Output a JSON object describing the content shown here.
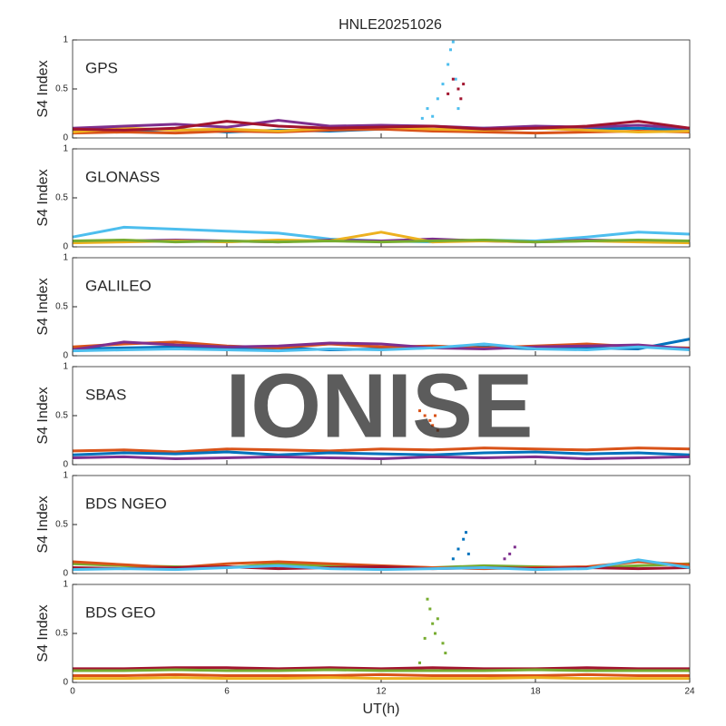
{
  "title": "HNLE20251026",
  "watermark": "IONISE",
  "chart_data": [
    {
      "type": "line",
      "label": "GPS",
      "ylabel": "S4 Index",
      "xlim": [
        0,
        24
      ],
      "ylim": [
        0,
        1
      ],
      "yticks": [
        0,
        0.5,
        1
      ],
      "xticks": [
        0,
        6,
        12,
        18,
        24
      ],
      "x": [
        0,
        2,
        4,
        6,
        8,
        10,
        12,
        14,
        16,
        18,
        20,
        22,
        24
      ],
      "series": [
        {
          "color": "#0072BD",
          "values": [
            0.08,
            0.07,
            0.09,
            0.06,
            0.08,
            0.07,
            0.09,
            0.08,
            0.1,
            0.11,
            0.09,
            0.1,
            0.08
          ]
        },
        {
          "color": "#D95319",
          "values": [
            0.05,
            0.06,
            0.05,
            0.07,
            0.06,
            0.08,
            0.09,
            0.07,
            0.06,
            0.05,
            0.06,
            0.07,
            0.06
          ]
        },
        {
          "color": "#EDB120",
          "values": [
            0.06,
            0.1,
            0.08,
            0.09,
            0.07,
            0.1,
            0.11,
            0.09,
            0.08,
            0.1,
            0.08,
            0.06,
            0.07
          ]
        },
        {
          "color": "#7E2F8E",
          "values": [
            0.1,
            0.12,
            0.14,
            0.11,
            0.18,
            0.12,
            0.13,
            0.12,
            0.1,
            0.12,
            0.11,
            0.13,
            0.1
          ]
        },
        {
          "color": "#A2142F",
          "values": [
            0.09,
            0.08,
            0.1,
            0.17,
            0.12,
            0.1,
            0.11,
            0.12,
            0.09,
            0.1,
            0.12,
            0.17,
            0.1
          ]
        },
        {
          "color": "#4DBEEE",
          "marker": true,
          "x": [
            13.6,
            13.8,
            14,
            14.2,
            14.4,
            14.6,
            14.7,
            14.8,
            14.9,
            15.0
          ],
          "values": [
            0.2,
            0.3,
            0.22,
            0.4,
            0.55,
            0.75,
            0.9,
            0.98,
            0.6,
            0.3
          ]
        },
        {
          "color": "#A2142F",
          "marker": true,
          "x": [
            14.6,
            14.8,
            15.0,
            15.1,
            15.2
          ],
          "values": [
            0.45,
            0.6,
            0.5,
            0.4,
            0.55
          ]
        }
      ]
    },
    {
      "type": "line",
      "label": "GLONASS",
      "ylabel": "S4 Index",
      "xlim": [
        0,
        24
      ],
      "ylim": [
        0,
        1
      ],
      "yticks": [
        0,
        0.5,
        1
      ],
      "xticks": [
        0,
        6,
        12,
        18,
        24
      ],
      "x": [
        0,
        2,
        4,
        6,
        8,
        10,
        12,
        14,
        16,
        18,
        20,
        22,
        24
      ],
      "series": [
        {
          "color": "#4DBEEE",
          "values": [
            0.1,
            0.2,
            0.18,
            0.16,
            0.14,
            0.08,
            0.06,
            0.05,
            0.07,
            0.06,
            0.1,
            0.15,
            0.13
          ]
        },
        {
          "color": "#7E2F8E",
          "values": [
            0.05,
            0.06,
            0.07,
            0.06,
            0.05,
            0.07,
            0.06,
            0.08,
            0.06,
            0.05,
            0.07,
            0.06,
            0.05
          ]
        },
        {
          "color": "#EDB120",
          "values": [
            0.04,
            0.05,
            0.06,
            0.05,
            0.07,
            0.06,
            0.15,
            0.05,
            0.06,
            0.05,
            0.06,
            0.05,
            0.04
          ]
        },
        {
          "color": "#77AC30",
          "values": [
            0.06,
            0.07,
            0.05,
            0.06,
            0.05,
            0.06,
            0.05,
            0.06,
            0.07,
            0.05,
            0.06,
            0.07,
            0.06
          ]
        }
      ]
    },
    {
      "type": "line",
      "label": "GALILEO",
      "ylabel": "S4 Index",
      "xlim": [
        0,
        24
      ],
      "ylim": [
        0,
        1
      ],
      "yticks": [
        0,
        0.5,
        1
      ],
      "xticks": [
        0,
        6,
        12,
        18,
        24
      ],
      "x": [
        0,
        2,
        4,
        6,
        8,
        10,
        12,
        14,
        16,
        18,
        20,
        22,
        24
      ],
      "series": [
        {
          "color": "#0072BD",
          "values": [
            0.07,
            0.08,
            0.09,
            0.07,
            0.08,
            0.06,
            0.07,
            0.08,
            0.09,
            0.07,
            0.08,
            0.07,
            0.17
          ]
        },
        {
          "color": "#D95319",
          "values": [
            0.09,
            0.12,
            0.14,
            0.1,
            0.08,
            0.12,
            0.09,
            0.1,
            0.08,
            0.1,
            0.12,
            0.09,
            0.08
          ]
        },
        {
          "color": "#7E2F8E",
          "values": [
            0.06,
            0.14,
            0.11,
            0.09,
            0.1,
            0.13,
            0.12,
            0.08,
            0.07,
            0.09,
            0.1,
            0.11,
            0.07
          ]
        },
        {
          "color": "#4DBEEE",
          "values": [
            0.05,
            0.06,
            0.07,
            0.06,
            0.05,
            0.07,
            0.06,
            0.08,
            0.12,
            0.07,
            0.06,
            0.09,
            0.06
          ]
        }
      ]
    },
    {
      "type": "line",
      "label": "SBAS",
      "ylabel": "S4 Index",
      "xlim": [
        0,
        24
      ],
      "ylim": [
        0,
        1
      ],
      "yticks": [
        0,
        0.5,
        1
      ],
      "xticks": [
        0,
        6,
        12,
        18,
        24
      ],
      "x": [
        0,
        2,
        4,
        6,
        8,
        10,
        12,
        14,
        16,
        18,
        20,
        22,
        24
      ],
      "series": [
        {
          "color": "#D95319",
          "values": [
            0.14,
            0.15,
            0.13,
            0.16,
            0.15,
            0.14,
            0.16,
            0.15,
            0.17,
            0.16,
            0.15,
            0.17,
            0.16
          ]
        },
        {
          "color": "#0072BD",
          "values": [
            0.1,
            0.12,
            0.11,
            0.13,
            0.1,
            0.12,
            0.11,
            0.1,
            0.12,
            0.13,
            0.11,
            0.12,
            0.1
          ]
        },
        {
          "color": "#7E2F8E",
          "values": [
            0.07,
            0.08,
            0.06,
            0.07,
            0.08,
            0.07,
            0.06,
            0.08,
            0.07,
            0.08,
            0.06,
            0.07,
            0.08
          ]
        },
        {
          "color": "#D95319",
          "marker": true,
          "x": [
            13.5,
            13.7,
            13.9,
            14.0,
            14.1,
            14.2
          ],
          "values": [
            0.55,
            0.5,
            0.45,
            0.4,
            0.5,
            0.35
          ]
        }
      ]
    },
    {
      "type": "line",
      "label": "BDS NGEO",
      "ylabel": "S4 Index",
      "xlim": [
        0,
        24
      ],
      "ylim": [
        0,
        1
      ],
      "yticks": [
        0,
        0.5,
        1
      ],
      "xticks": [
        0,
        6,
        12,
        18,
        24
      ],
      "x": [
        0,
        2,
        4,
        6,
        8,
        10,
        12,
        14,
        16,
        18,
        20,
        22,
        24
      ],
      "series": [
        {
          "color": "#77AC30",
          "values": [
            0.1,
            0.08,
            0.07,
            0.06,
            0.1,
            0.08,
            0.07,
            0.06,
            0.08,
            0.07,
            0.06,
            0.08,
            0.1
          ]
        },
        {
          "color": "#D95319",
          "values": [
            0.12,
            0.09,
            0.06,
            0.1,
            0.12,
            0.1,
            0.08,
            0.06,
            0.05,
            0.06,
            0.07,
            0.12,
            0.09
          ]
        },
        {
          "color": "#A2142F",
          "values": [
            0.06,
            0.05,
            0.06,
            0.07,
            0.05,
            0.06,
            0.07,
            0.05,
            0.06,
            0.05,
            0.06,
            0.05,
            0.06
          ]
        },
        {
          "color": "#4DBEEE",
          "values": [
            0.04,
            0.05,
            0.04,
            0.06,
            0.08,
            0.05,
            0.04,
            0.05,
            0.06,
            0.04,
            0.05,
            0.14,
            0.06
          ]
        },
        {
          "color": "#0072BD",
          "marker": true,
          "x": [
            14.8,
            15.0,
            15.2,
            15.3,
            15.4
          ],
          "values": [
            0.15,
            0.25,
            0.35,
            0.42,
            0.2
          ]
        },
        {
          "color": "#7E2F8E",
          "marker": true,
          "x": [
            16.8,
            17.0,
            17.2
          ],
          "values": [
            0.15,
            0.2,
            0.27
          ]
        }
      ]
    },
    {
      "type": "line",
      "label": "BDS GEO",
      "ylabel": "S4 Index",
      "xlabel": "UT(h)",
      "xticklabels": true,
      "xlim": [
        0,
        24
      ],
      "ylim": [
        0,
        1
      ],
      "yticks": [
        0,
        0.5,
        1
      ],
      "xticks": [
        0,
        6,
        12,
        18,
        24
      ],
      "x": [
        0,
        2,
        4,
        6,
        8,
        10,
        12,
        14,
        16,
        18,
        20,
        22,
        24
      ],
      "series": [
        {
          "color": "#A2142F",
          "values": [
            0.14,
            0.14,
            0.15,
            0.15,
            0.14,
            0.15,
            0.14,
            0.15,
            0.14,
            0.14,
            0.15,
            0.14,
            0.14
          ]
        },
        {
          "color": "#77AC30",
          "values": [
            0.12,
            0.12,
            0.13,
            0.12,
            0.12,
            0.13,
            0.12,
            0.12,
            0.12,
            0.13,
            0.12,
            0.12,
            0.12
          ]
        },
        {
          "color": "#D95319",
          "values": [
            0.07,
            0.07,
            0.08,
            0.07,
            0.07,
            0.07,
            0.08,
            0.07,
            0.07,
            0.07,
            0.08,
            0.07,
            0.07
          ]
        },
        {
          "color": "#EDB120",
          "values": [
            0.04,
            0.04,
            0.05,
            0.04,
            0.04,
            0.05,
            0.04,
            0.04,
            0.04,
            0.05,
            0.04,
            0.04,
            0.04
          ]
        },
        {
          "color": "#77AC30",
          "marker": true,
          "x": [
            13.5,
            13.7,
            13.8,
            13.9,
            14.0,
            14.1,
            14.2,
            14.4,
            14.5
          ],
          "values": [
            0.2,
            0.45,
            0.85,
            0.75,
            0.6,
            0.5,
            0.65,
            0.4,
            0.3
          ]
        }
      ]
    }
  ]
}
